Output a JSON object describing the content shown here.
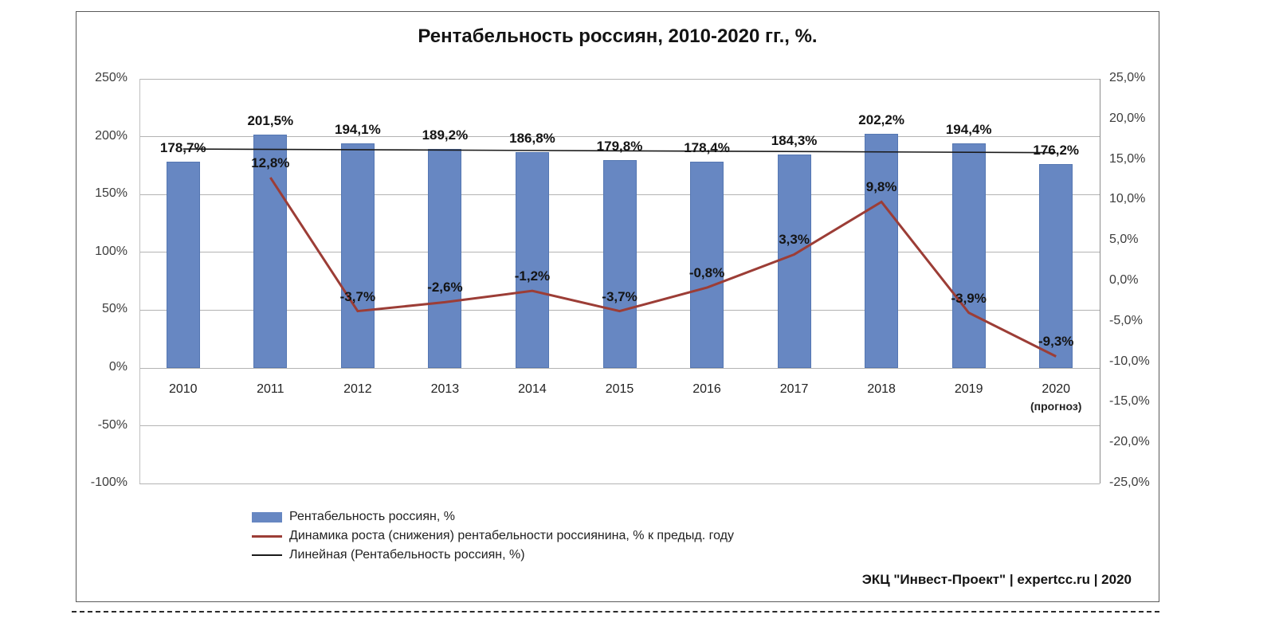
{
  "title": "Рентабельность россиян, 2010-2020 гг., %.",
  "footer": "ЭКЦ \"Инвест-Проект\" | expertcc.ru | 2020",
  "colors": {
    "bar": "#6787C2",
    "bar_border": "#5577b2",
    "line": "#9C3D36",
    "trend": "#1a1a1a",
    "grid": "#b3b3b3"
  },
  "chart_data": {
    "type": "bar",
    "subtype": "combo-bar-line-with-trend",
    "title": "Рентабельность россиян, 2010-2020 гг., %.",
    "categories": [
      {
        "label": "2010"
      },
      {
        "label": "2011"
      },
      {
        "label": "2012"
      },
      {
        "label": "2013"
      },
      {
        "label": "2014"
      },
      {
        "label": "2015"
      },
      {
        "label": "2016"
      },
      {
        "label": "2017"
      },
      {
        "label": "2018"
      },
      {
        "label": "2019"
      },
      {
        "label": "2020",
        "sublabel": "(прогноз)"
      }
    ],
    "series": [
      {
        "name": "Рентабельность россиян, %",
        "type": "bar",
        "axis": "left",
        "values": [
          178.7,
          201.5,
          194.1,
          189.2,
          186.8,
          179.8,
          178.4,
          184.3,
          202.2,
          194.4,
          176.2
        ],
        "labels": [
          "178,7%",
          "201,5%",
          "194,1%",
          "189,2%",
          "186,8%",
          "179,8%",
          "178,4%",
          "184,3%",
          "202,2%",
          "194,4%",
          "176,2%"
        ]
      },
      {
        "name": "Динамика роста (снижения) рентабельности россиянина, % к предыд. году",
        "type": "line",
        "axis": "right",
        "values": [
          null,
          12.8,
          -3.7,
          -2.6,
          -1.2,
          -3.7,
          -0.8,
          3.3,
          9.8,
          -3.9,
          -9.3
        ],
        "labels": [
          "",
          "12,8%",
          "-3,7%",
          "-2,6%",
          "-1,2%",
          "-3,7%",
          "-0,8%",
          "3,3%",
          "9,8%",
          "-3,9%",
          "-9,3%"
        ]
      },
      {
        "name": "Линейная (Рентабельность россиян, %)",
        "type": "trendline",
        "axis": "left"
      }
    ],
    "left_axis": {
      "min": -100,
      "max": 250,
      "ticks": [
        {
          "value": 250,
          "label": "250%"
        },
        {
          "value": 200,
          "label": "200%"
        },
        {
          "value": 150,
          "label": "150%"
        },
        {
          "value": 100,
          "label": "100%"
        },
        {
          "value": 50,
          "label": "50%"
        },
        {
          "value": 0,
          "label": "0%"
        },
        {
          "value": -50,
          "label": "-50%"
        },
        {
          "value": -100,
          "label": "-100%"
        }
      ]
    },
    "right_axis": {
      "min": -25,
      "max": 25,
      "ticks": [
        {
          "value": 25,
          "label": "25,0%"
        },
        {
          "value": 20,
          "label": "20,0%"
        },
        {
          "value": 15,
          "label": "15,0%"
        },
        {
          "value": 10,
          "label": "10,0%"
        },
        {
          "value": 5,
          "label": "5,0%"
        },
        {
          "value": 0,
          "label": "0,0%"
        },
        {
          "value": -5,
          "label": "-5,0%"
        },
        {
          "value": -10,
          "label": "-10,0%"
        },
        {
          "value": -15,
          "label": "-15,0%"
        },
        {
          "value": -20,
          "label": "-20,0%"
        },
        {
          "value": -25,
          "label": "-25,0%"
        }
      ]
    },
    "grid": true,
    "legend_position": "bottom-left"
  }
}
